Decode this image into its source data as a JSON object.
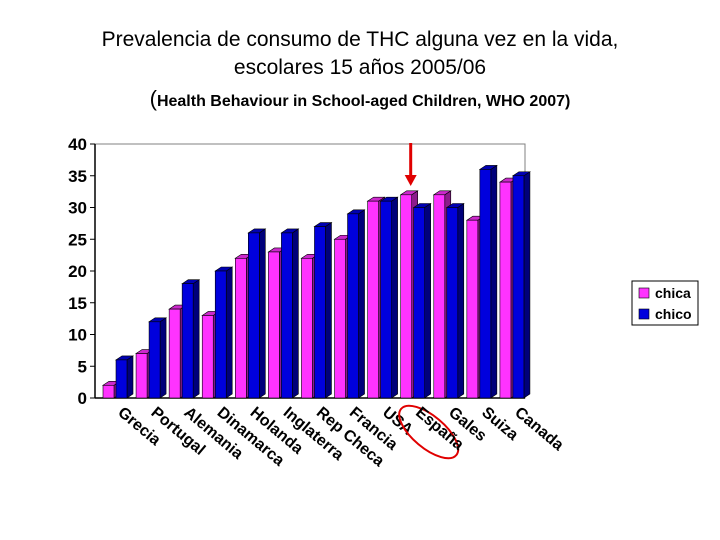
{
  "title_line1": "Prevalencia de consumo de THC alguna vez en la vida,",
  "title_line2": "escolares 15 años 2005/06",
  "subtitle_paren": "(",
  "subtitle_text": "Health Behaviour in School-aged Children, WHO 2007)",
  "colors": {
    "chica": "#ff33ff",
    "chico": "#0000dd",
    "highlight": "#e00000"
  },
  "chart_data": {
    "type": "bar",
    "title": "Prevalencia de consumo de THC alguna vez en la vida, escolares 15 años 2005/06",
    "ylim": [
      0,
      40
    ],
    "yticks": [
      "0",
      "5",
      "10",
      "15",
      "20",
      "25",
      "30",
      "35",
      "40"
    ],
    "categories": [
      "Grecia",
      "Portugal",
      "Alemania",
      "Dinamarca",
      "Holanda",
      "Inglaterra",
      "Rep Checa",
      "Francia",
      "USA",
      "España",
      "Gales",
      "Suiza",
      "Canada"
    ],
    "series": [
      {
        "name": "chica",
        "values": [
          2,
          7,
          14,
          13,
          22,
          23,
          22,
          25,
          31,
          32,
          32,
          28,
          34
        ]
      },
      {
        "name": "chico",
        "values": [
          6,
          12,
          18,
          20,
          26,
          26,
          27,
          29,
          31,
          30,
          30,
          36,
          35
        ]
      }
    ],
    "highlighted_category": "España",
    "legend_position": "right",
    "grid": false
  }
}
